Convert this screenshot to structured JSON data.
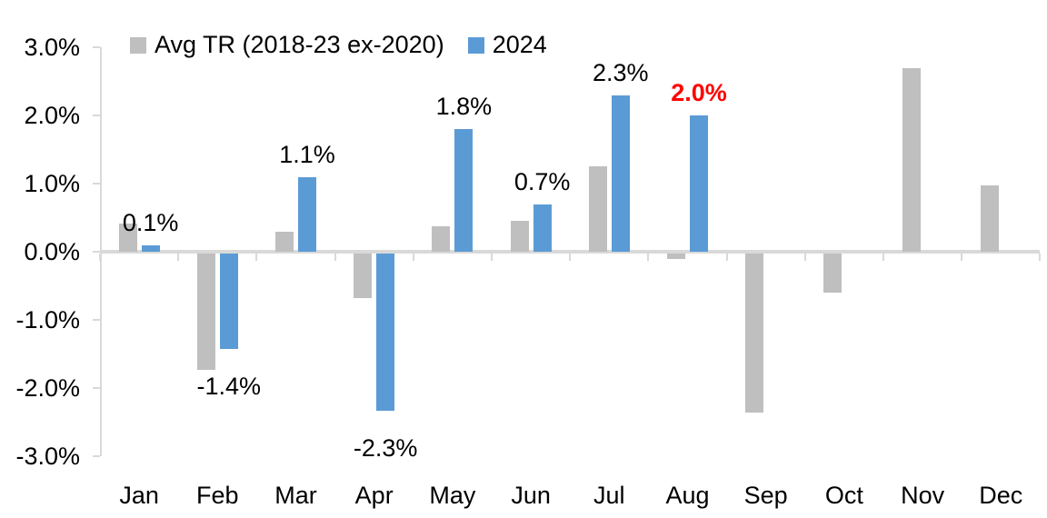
{
  "chart_data": {
    "type": "bar",
    "title": "",
    "categories": [
      "Jan",
      "Feb",
      "Mar",
      "Apr",
      "May",
      "Jun",
      "Jul",
      "Aug",
      "Sep",
      "Oct",
      "Nov",
      "Dec"
    ],
    "series": [
      {
        "name": "Avg TR (2018-23 ex-2020)",
        "color": "#bfbfbf",
        "values": [
          0.42,
          -1.7,
          0.3,
          -0.65,
          0.38,
          0.45,
          1.25,
          -0.08,
          -2.33,
          -0.57,
          2.7,
          0.97
        ]
      },
      {
        "name": "2024",
        "color": "#5b9bd5",
        "values": [
          0.1,
          -1.4,
          1.1,
          -2.3,
          1.8,
          0.7,
          2.3,
          2.0,
          null,
          null,
          null,
          null
        ]
      }
    ],
    "data_labels": {
      "labeled_series": "2024",
      "labels": [
        {
          "text": "0.1%",
          "emphasis": false
        },
        {
          "text": "-1.4%",
          "emphasis": false
        },
        {
          "text": "1.1%",
          "emphasis": false
        },
        {
          "text": "-2.3%",
          "emphasis": false
        },
        {
          "text": "1.8%",
          "emphasis": false
        },
        {
          "text": "0.7%",
          "emphasis": false
        },
        {
          "text": "2.3%",
          "emphasis": false
        },
        {
          "text": "2.0%",
          "emphasis": true
        },
        null,
        null,
        null,
        null
      ],
      "emphasis_color": "#ff0000",
      "normal_color": "#000000"
    },
    "y_axis": {
      "min": -3,
      "max": 3,
      "tick_labels": [
        "3.0%",
        "2.0%",
        "1.0%",
        "0.0%",
        "-1.0%",
        "-2.0%",
        "-3.0%"
      ],
      "tick_values": [
        3,
        2,
        1,
        0,
        -1,
        -2,
        -3
      ]
    },
    "legend_position": "top",
    "grid": false
  },
  "colors": {
    "bar_gray": "#bfbfbf",
    "bar_blue": "#5b9bd5",
    "axis": "#d9d9d9",
    "text": "#000000",
    "emphasis": "#ff0000",
    "background": "#ffffff"
  }
}
